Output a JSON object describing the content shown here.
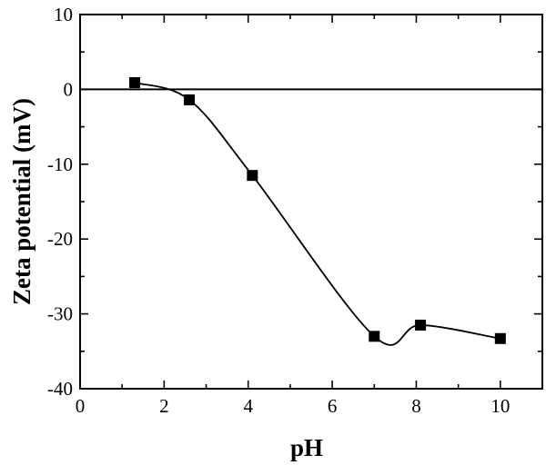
{
  "chart_data": {
    "type": "scatter",
    "title": "",
    "xlabel": "pH",
    "ylabel": "Zeta potential (mV)",
    "xlim": [
      0,
      11
    ],
    "ylim": [
      -40,
      10
    ],
    "xticks": [
      0,
      2,
      4,
      6,
      8,
      10
    ],
    "yticks": [
      10,
      0,
      -10,
      -20,
      -30,
      -40
    ],
    "xtick_labels": [
      "0",
      "2",
      "4",
      "6",
      "8",
      "10"
    ],
    "ytick_labels": [
      "10",
      "0",
      "-10",
      "-20",
      "-30",
      "-40"
    ],
    "reference_line_y": 0,
    "series": [
      {
        "name": "Zeta potential",
        "marker": "square",
        "color": "#000000",
        "x": [
          1.3,
          2.6,
          4.1,
          7.0,
          8.1,
          10.0
        ],
        "y": [
          0.9,
          -1.4,
          -11.5,
          -33.0,
          -31.5,
          -33.3
        ]
      }
    ],
    "fit_curve": "smooth spline through points",
    "grid": false,
    "legend": "none"
  }
}
